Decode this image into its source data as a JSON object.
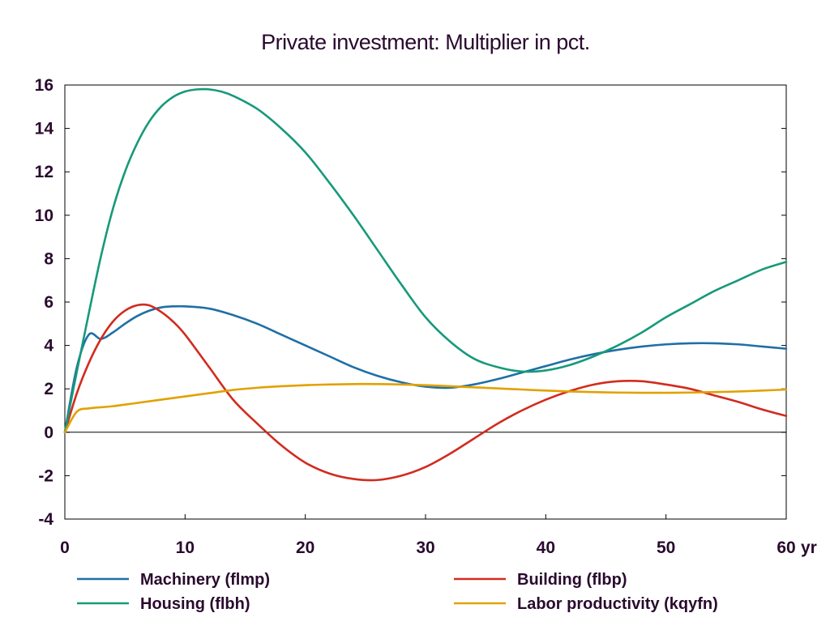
{
  "chart_data": {
    "type": "line",
    "title": "Private investment: Multiplier in pct.",
    "xlabel": "",
    "ylabel": "",
    "x_unit_label": "yr",
    "xlim": [
      0,
      60
    ],
    "ylim": [
      -4,
      16
    ],
    "x_ticks": [
      "0",
      "10",
      "20",
      "30",
      "40",
      "50",
      "60"
    ],
    "y_ticks": [
      "16",
      "14",
      "12",
      "10",
      "8",
      "6",
      "4",
      "2",
      "0",
      "-2",
      "-4"
    ],
    "grid": false,
    "legend_position": "bottom",
    "series": [
      {
        "name": "Machinery (flmp)",
        "color": "#1f6fa6",
        "x": [
          0,
          1,
          2,
          3,
          4,
          5,
          6,
          7,
          8,
          9,
          10,
          12,
          14,
          16,
          18,
          20,
          22,
          24,
          26,
          28,
          30,
          32,
          34,
          36,
          38,
          40,
          42,
          44,
          46,
          48,
          50,
          52,
          54,
          56,
          58,
          60
        ],
        "y": [
          0,
          3.0,
          4.5,
          4.3,
          4.6,
          5.0,
          5.35,
          5.6,
          5.75,
          5.8,
          5.8,
          5.7,
          5.4,
          5.0,
          4.5,
          4.0,
          3.5,
          3.0,
          2.6,
          2.3,
          2.1,
          2.05,
          2.2,
          2.45,
          2.75,
          3.05,
          3.35,
          3.6,
          3.8,
          3.95,
          4.05,
          4.1,
          4.1,
          4.05,
          3.95,
          3.85
        ]
      },
      {
        "name": "Building (flbp)",
        "color": "#d22b1f",
        "x": [
          0,
          1,
          2,
          3,
          4,
          5,
          6,
          7,
          8,
          9,
          10,
          12,
          14,
          16,
          18,
          20,
          22,
          24,
          26,
          28,
          30,
          32,
          34,
          36,
          38,
          40,
          42,
          44,
          46,
          48,
          50,
          52,
          54,
          56,
          58,
          60
        ],
        "y": [
          0,
          1.8,
          3.2,
          4.3,
          5.1,
          5.6,
          5.85,
          5.85,
          5.55,
          5.1,
          4.5,
          3.0,
          1.5,
          0.4,
          -0.6,
          -1.4,
          -1.9,
          -2.15,
          -2.2,
          -2.0,
          -1.6,
          -1.0,
          -0.3,
          0.4,
          1.0,
          1.5,
          1.9,
          2.2,
          2.35,
          2.35,
          2.2,
          2.0,
          1.7,
          1.4,
          1.05,
          0.75
        ]
      },
      {
        "name": "Housing (flbh)",
        "color": "#17997a",
        "x": [
          0,
          1,
          2,
          3,
          4,
          5,
          6,
          7,
          8,
          9,
          10,
          11,
          12,
          13,
          14,
          16,
          18,
          20,
          22,
          24,
          26,
          28,
          30,
          32,
          34,
          36,
          38,
          40,
          42,
          44,
          46,
          48,
          50,
          52,
          54,
          56,
          58,
          60
        ],
        "y": [
          0,
          2.8,
          5.5,
          8.1,
          10.3,
          12.0,
          13.3,
          14.3,
          15.0,
          15.45,
          15.7,
          15.8,
          15.8,
          15.7,
          15.5,
          14.9,
          14.0,
          12.9,
          11.5,
          10.0,
          8.4,
          6.8,
          5.3,
          4.2,
          3.4,
          3.0,
          2.8,
          2.85,
          3.1,
          3.5,
          4.0,
          4.6,
          5.3,
          5.9,
          6.5,
          7.0,
          7.5,
          7.85
        ]
      },
      {
        "name": "Labor productivity (kqyfn)",
        "color": "#e2a100",
        "x": [
          0,
          1,
          2,
          3,
          4,
          6,
          8,
          10,
          12,
          14,
          16,
          18,
          20,
          22,
          24,
          26,
          28,
          30,
          32,
          34,
          36,
          38,
          40,
          42,
          44,
          46,
          48,
          50,
          52,
          54,
          56,
          58,
          60
        ],
        "y": [
          0,
          0.95,
          1.1,
          1.15,
          1.2,
          1.35,
          1.5,
          1.65,
          1.8,
          1.95,
          2.05,
          2.12,
          2.17,
          2.2,
          2.22,
          2.22,
          2.2,
          2.17,
          2.12,
          2.07,
          2.02,
          1.97,
          1.92,
          1.88,
          1.85,
          1.83,
          1.82,
          1.82,
          1.83,
          1.85,
          1.88,
          1.92,
          1.97
        ]
      }
    ]
  }
}
